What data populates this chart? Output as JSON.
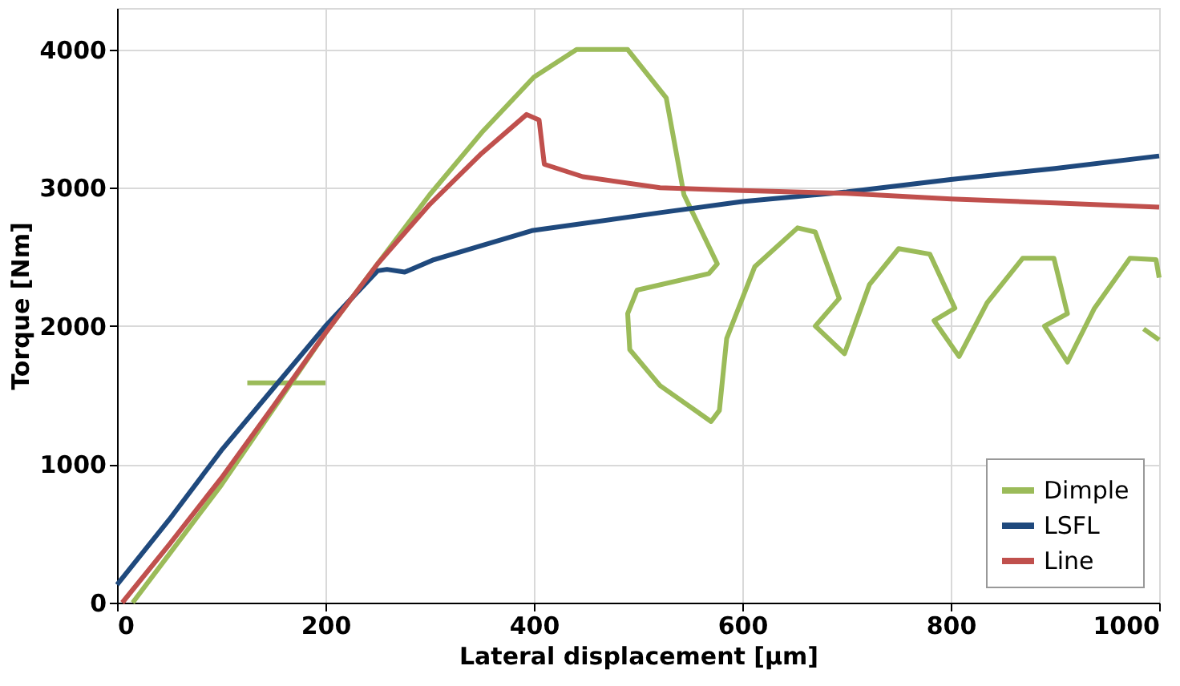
{
  "chart_data": {
    "type": "line",
    "xlabel": "Lateral displacement [µm]",
    "ylabel": "Torque [Nm]",
    "xlim": [
      0,
      1000
    ],
    "xticks": [
      0,
      200,
      400,
      600,
      800,
      1000
    ],
    "ylim": [
      0,
      4300
    ],
    "yticks": [
      0,
      1000,
      2000,
      3000,
      4000
    ],
    "grid": true,
    "legend": "bottom right",
    "line_style": "solid",
    "marker": "none",
    "series": [
      {
        "name": "Dimple",
        "color": "#9bbb59",
        "x": [
          15,
          50,
          100,
          150,
          200,
          250,
          300,
          350,
          400,
          441,
          490,
          527,
          544,
          576,
          568,
          499,
          490,
          492,
          521,
          570,
          578,
          585,
          612,
          653,
          670,
          693,
          670,
          698,
          722,
          750,
          780,
          804,
          784,
          808,
          835,
          869,
          899,
          912,
          890,
          912,
          938,
          972,
          997,
          1000,
          null,
          985,
          1000,
          null,
          125,
          200
        ],
        "values": [
          0,
          350,
          850,
          1400,
          1950,
          2450,
          2950,
          3400,
          3800,
          4000,
          4000,
          3650,
          2950,
          2450,
          2380,
          2260,
          2090,
          1830,
          1570,
          1310,
          1390,
          1910,
          2430,
          2710,
          2680,
          2200,
          2000,
          1800,
          2300,
          2560,
          2520,
          2130,
          2040,
          1780,
          2170,
          2490,
          2490,
          2090,
          2000,
          1740,
          2130,
          2490,
          2480,
          2350,
          null,
          1980,
          1900,
          null,
          1590,
          1590
        ]
      },
      {
        "name": "LSFL",
        "color": "#1f497d",
        "x": [
          0,
          50,
          100,
          150,
          200,
          250,
          259,
          276,
          304,
          398,
          521,
          600,
          700,
          800,
          900,
          1000
        ],
        "values": [
          130,
          600,
          1100,
          1550,
          2000,
          2400,
          2410,
          2390,
          2480,
          2690,
          2820,
          2900,
          2970,
          3060,
          3140,
          3230
        ]
      },
      {
        "name": "Line",
        "color": "#c0504d",
        "x": [
          5,
          50,
          100,
          150,
          200,
          250,
          300,
          350,
          393,
          405,
          410,
          447,
          521,
          600,
          700,
          800,
          900,
          1000
        ],
        "values": [
          0,
          420,
          900,
          1420,
          1950,
          2450,
          2880,
          3250,
          3530,
          3490,
          3170,
          3080,
          3000,
          2980,
          2960,
          2920,
          2890,
          2860
        ]
      }
    ]
  }
}
